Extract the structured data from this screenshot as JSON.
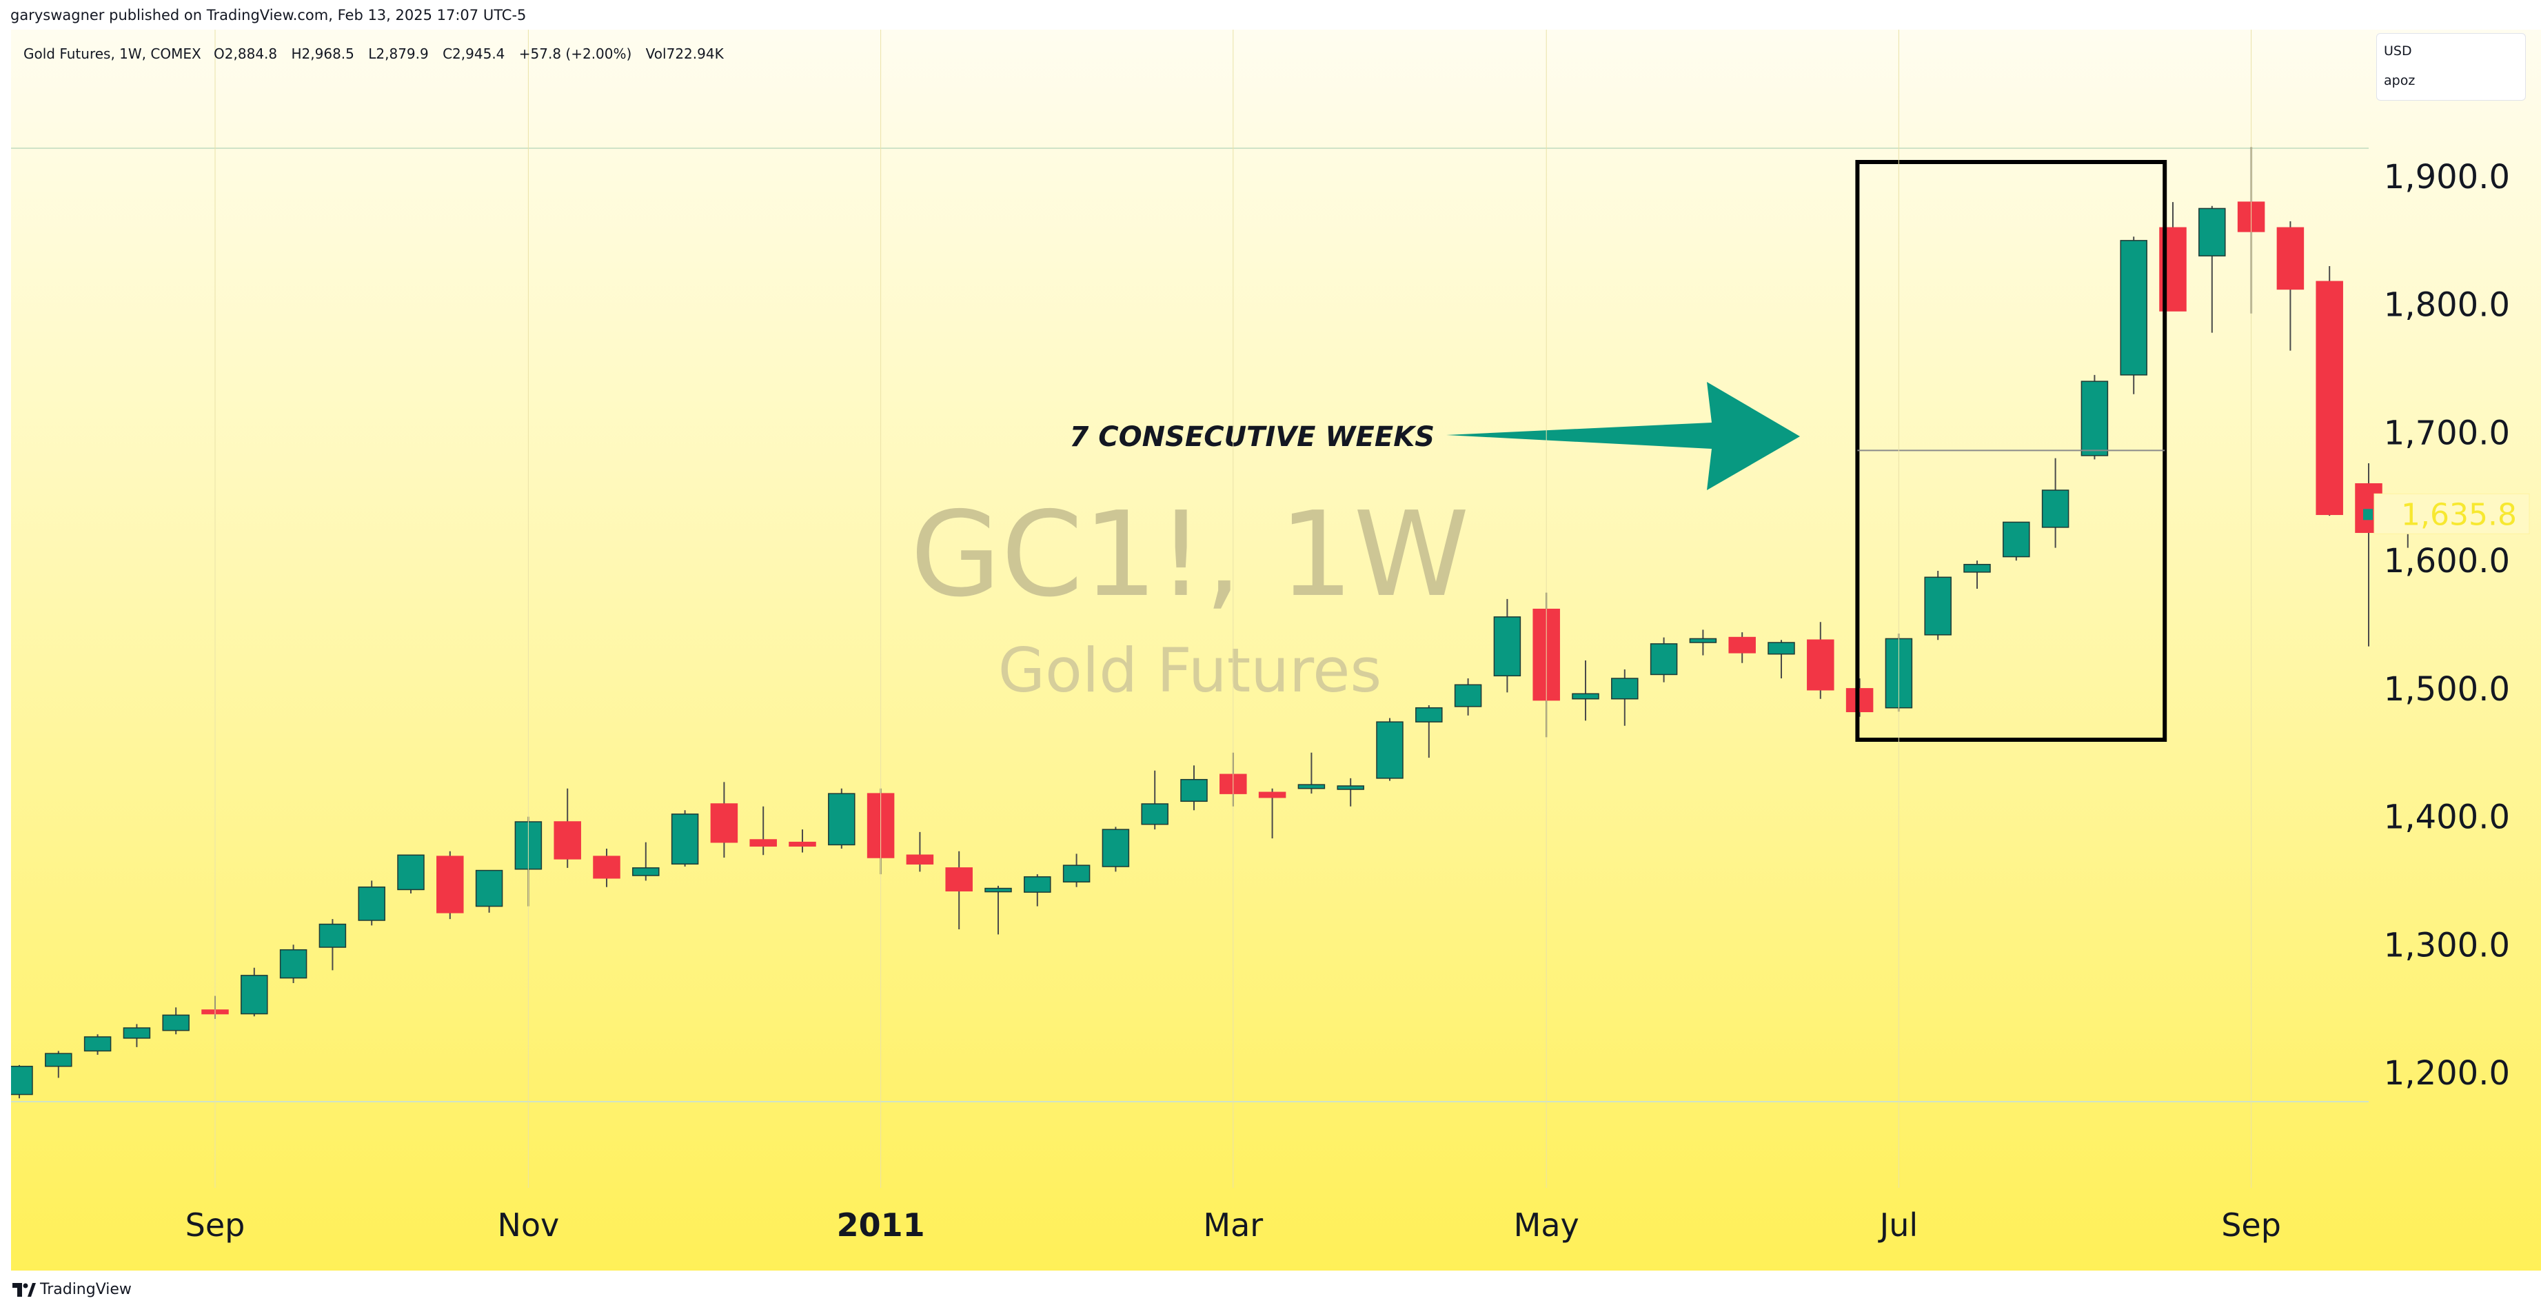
{
  "publish_info": "garyswagner published on TradingView.com, Feb 13, 2025 17:07 UTC-5",
  "legend": {
    "symbol": "Gold Futures, 1W, COMEX",
    "open": "O2,884.8",
    "high": "H2,968.5",
    "low": "L2,879.9",
    "close": "C2,945.4",
    "change": "+57.8 (+2.00%)",
    "volume": "Vol722.94K"
  },
  "currency_menu": {
    "currency": "USD",
    "mode": "apoz"
  },
  "watermark": {
    "ticker": "GC1!, 1W",
    "name": "Gold Futures"
  },
  "annotation": {
    "text": "7 CONSECUTIVE WEEKS",
    "arrow_color": "#089981",
    "box_color": "#000000"
  },
  "price_label": {
    "text": "1,635.8",
    "color": "#f7e830"
  },
  "footer": {
    "brand": "TradingView"
  },
  "colors": {
    "up": "#089981",
    "down": "#f23645",
    "bg_top": "#fffdf0",
    "bg_bottom": "#fff058",
    "text": "#131722"
  },
  "chart_data": {
    "type": "candlestick",
    "x_ticks": [
      "Sep",
      "Nov",
      "2011",
      "Mar",
      "May",
      "Jul",
      "Sep"
    ],
    "y_ticks": [
      "1,200.0",
      "1,300.0",
      "1,400.0",
      "1,500.0",
      "1,600.0",
      "1,700.0",
      "1,800.0",
      "1,900.0"
    ],
    "y_tick_values": [
      1200,
      1300,
      1400,
      1500,
      1600,
      1700,
      1800,
      1900
    ],
    "x_tick_bar_index": [
      5,
      13,
      22,
      31,
      39,
      48,
      57
    ],
    "ylim": [
      1115,
      2010
    ],
    "grid": false,
    "ohlc": [
      [
        1183,
        1206,
        1180,
        1205
      ],
      [
        1205,
        1217,
        1196,
        1215
      ],
      [
        1217,
        1230,
        1214,
        1228
      ],
      [
        1227,
        1238,
        1220,
        1235
      ],
      [
        1233,
        1251,
        1230,
        1245
      ],
      [
        1249,
        1260,
        1242,
        1246
      ],
      [
        1246,
        1282,
        1244,
        1276
      ],
      [
        1274,
        1300,
        1270,
        1296
      ],
      [
        1298,
        1320,
        1280,
        1316
      ],
      [
        1319,
        1350,
        1315,
        1345
      ],
      [
        1343,
        1365,
        1340,
        1370
      ],
      [
        1369,
        1373,
        1320,
        1325
      ],
      [
        1330,
        1358,
        1325,
        1358
      ],
      [
        1359,
        1400,
        1330,
        1396
      ],
      [
        1396,
        1422,
        1360,
        1367
      ],
      [
        1369,
        1375,
        1345,
        1352
      ],
      [
        1354,
        1380,
        1350,
        1360
      ],
      [
        1363,
        1405,
        1361,
        1402
      ],
      [
        1410,
        1427,
        1368,
        1380
      ],
      [
        1382,
        1408,
        1370,
        1377
      ],
      [
        1380,
        1390,
        1372,
        1377
      ],
      [
        1378,
        1422,
        1375,
        1418
      ],
      [
        1418,
        1422,
        1355,
        1368
      ],
      [
        1370,
        1388,
        1357,
        1363
      ],
      [
        1360,
        1373,
        1312,
        1342
      ],
      [
        1343,
        1346,
        1308,
        1344
      ],
      [
        1341,
        1355,
        1330,
        1353
      ],
      [
        1349,
        1371,
        1345,
        1362
      ],
      [
        1361,
        1392,
        1357,
        1390
      ],
      [
        1394,
        1436,
        1390,
        1410
      ],
      [
        1412,
        1440,
        1405,
        1429
      ],
      [
        1433,
        1450,
        1408,
        1418
      ],
      [
        1419,
        1422,
        1383,
        1415
      ],
      [
        1422,
        1450,
        1418,
        1425
      ],
      [
        1424,
        1430,
        1408,
        1424
      ],
      [
        1430,
        1477,
        1428,
        1474
      ],
      [
        1474,
        1487,
        1446,
        1485
      ],
      [
        1486,
        1508,
        1479,
        1503
      ],
      [
        1510,
        1570,
        1497,
        1556
      ],
      [
        1562,
        1575,
        1462,
        1491
      ],
      [
        1492,
        1522,
        1475,
        1496
      ],
      [
        1492,
        1515,
        1471,
        1508
      ],
      [
        1511,
        1540,
        1505,
        1535
      ],
      [
        1536,
        1546,
        1526,
        1539
      ],
      [
        1540,
        1544,
        1520,
        1528
      ],
      [
        1527,
        1538,
        1508,
        1536
      ],
      [
        1538,
        1552,
        1492,
        1499
      ],
      [
        1500,
        1508,
        1478,
        1482
      ],
      [
        1485,
        1543,
        1482,
        1539
      ],
      [
        1542,
        1592,
        1538,
        1587
      ],
      [
        1591,
        1600,
        1578,
        1597
      ],
      [
        1603,
        1626,
        1600,
        1630
      ],
      [
        1626,
        1680,
        1610,
        1655
      ],
      [
        1682,
        1745,
        1679,
        1740
      ],
      [
        1745,
        1853,
        1730,
        1850
      ],
      [
        1860,
        1880,
        1800,
        1795
      ],
      [
        1838,
        1877,
        1778,
        1875
      ],
      [
        1880,
        1923,
        1793,
        1857
      ],
      [
        1860,
        1865,
        1764,
        1812
      ],
      [
        1818,
        1830,
        1635,
        1636
      ],
      [
        1660,
        1676,
        1533,
        1622
      ],
      [
        1622,
        1640,
        1610,
        1631
      ]
    ]
  }
}
